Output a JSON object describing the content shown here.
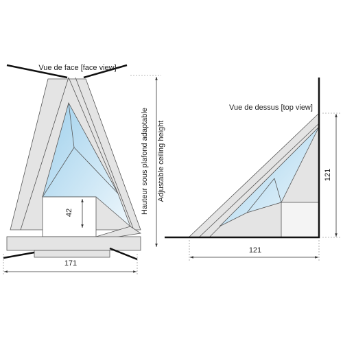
{
  "face_view": {
    "title": "Vue de face [face view]",
    "height_label_fr": "Hauteur sous plafond adaptable",
    "height_label_en": "Adjustable ceiling height",
    "opening_height": "42",
    "width": "171"
  },
  "top_view": {
    "title": "Vue de dessus [top view]",
    "depth": "121",
    "width": "121"
  }
}
